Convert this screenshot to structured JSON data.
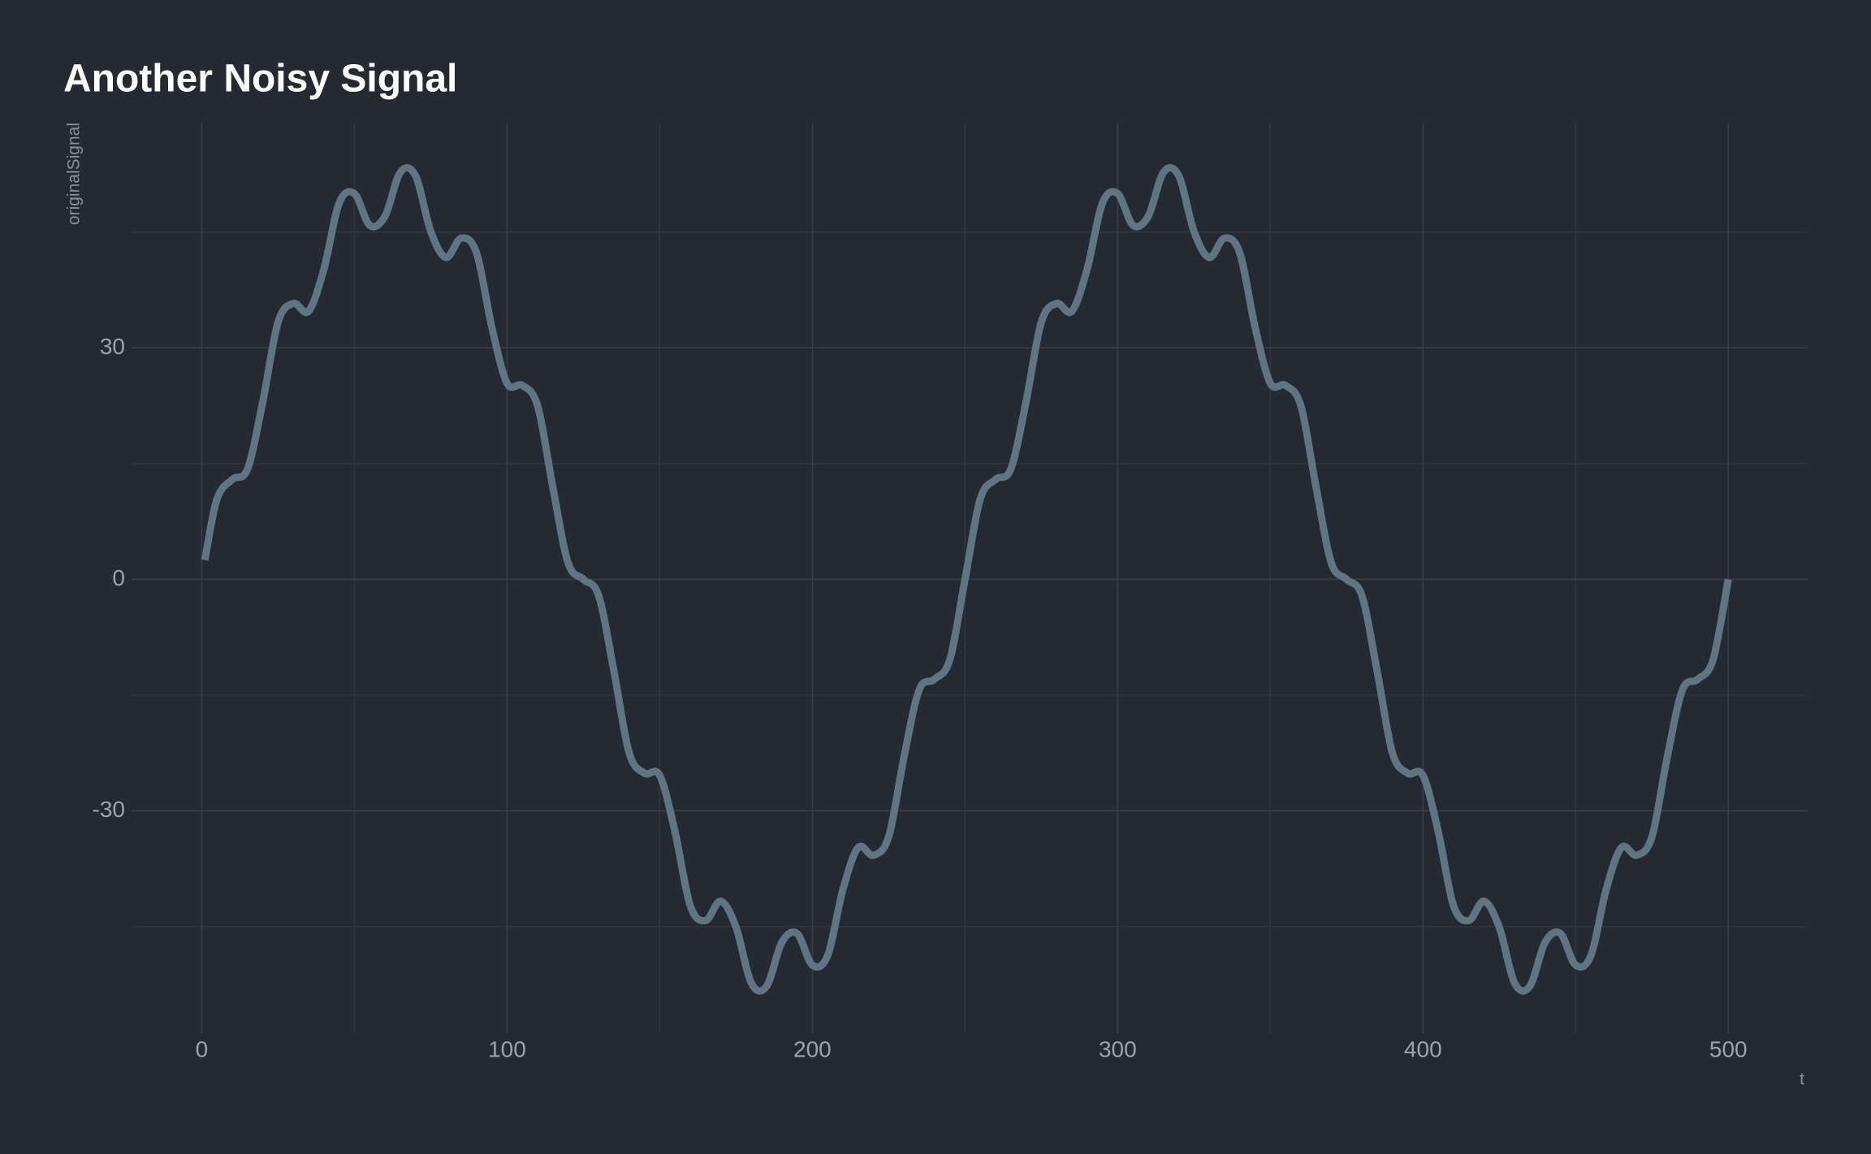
{
  "chart_data": {
    "type": "line",
    "title": "Another Noisy Signal",
    "x_label": "t",
    "y_label": "originalSignal",
    "x": [
      1,
      5,
      10,
      15,
      20,
      25,
      30,
      35,
      40,
      45,
      50,
      55,
      60,
      65,
      70,
      75,
      80,
      85,
      90,
      95,
      100,
      105,
      110,
      115,
      120,
      125,
      130,
      135,
      140,
      145,
      150,
      155,
      160,
      165,
      170,
      175,
      180,
      185,
      190,
      195,
      200,
      205,
      210,
      215,
      220,
      225,
      230,
      235,
      240,
      245,
      250,
      255,
      260,
      265,
      270,
      275,
      280,
      285,
      290,
      295,
      300,
      305,
      310,
      315,
      320,
      325,
      330,
      335,
      340,
      345,
      350,
      355,
      360,
      365,
      370,
      375,
      380,
      385,
      390,
      395,
      400,
      405,
      410,
      415,
      420,
      425,
      430,
      435,
      440,
      445,
      450,
      455,
      460,
      465,
      470,
      475,
      480,
      485,
      490,
      495,
      500
    ],
    "values": [
      2.5,
      10.43,
      12.95,
      14.31,
      23.05,
      33.36,
      35.76,
      34.76,
      40.21,
      48.76,
      50.0,
      45.9,
      47.05,
      52.75,
      52.32,
      45.1,
      41.72,
      44.23,
      42.3,
      32.7,
      25.42,
      25.13,
      22.51,
      11.91,
      2.11,
      0,
      -2.11,
      -11.91,
      -22.51,
      -25.13,
      -25.42,
      -32.7,
      -42.3,
      -44.23,
      -41.72,
      -45.1,
      -52.32,
      -52.75,
      -47.05,
      -45.9,
      -50.0,
      -48.76,
      -40.21,
      -34.76,
      -35.76,
      -33.36,
      -23.05,
      -14.31,
      -12.95,
      -10.43,
      0,
      10.43,
      12.95,
      14.31,
      23.05,
      33.36,
      35.76,
      34.76,
      40.21,
      48.76,
      50.0,
      45.9,
      47.05,
      52.75,
      52.32,
      45.1,
      41.72,
      44.23,
      42.3,
      32.7,
      25.42,
      25.13,
      22.51,
      11.91,
      2.11,
      0,
      -2.11,
      -11.91,
      -22.51,
      -25.13,
      -25.42,
      -32.7,
      -42.3,
      -44.23,
      -41.72,
      -45.1,
      -52.32,
      -52.75,
      -47.05,
      -45.9,
      -50.0,
      -48.76,
      -40.21,
      -34.76,
      -35.76,
      -33.36,
      -23.05,
      -14.31,
      -12.95,
      -10.43,
      0
    ],
    "color": "#5f7583",
    "xlim": [
      -23,
      526
    ],
    "xticks": [
      0,
      100,
      200,
      300,
      400,
      500
    ],
    "ylim": [
      -58.8,
      59.2
    ],
    "yticks": [
      -30,
      0,
      30
    ],
    "grid": true
  }
}
